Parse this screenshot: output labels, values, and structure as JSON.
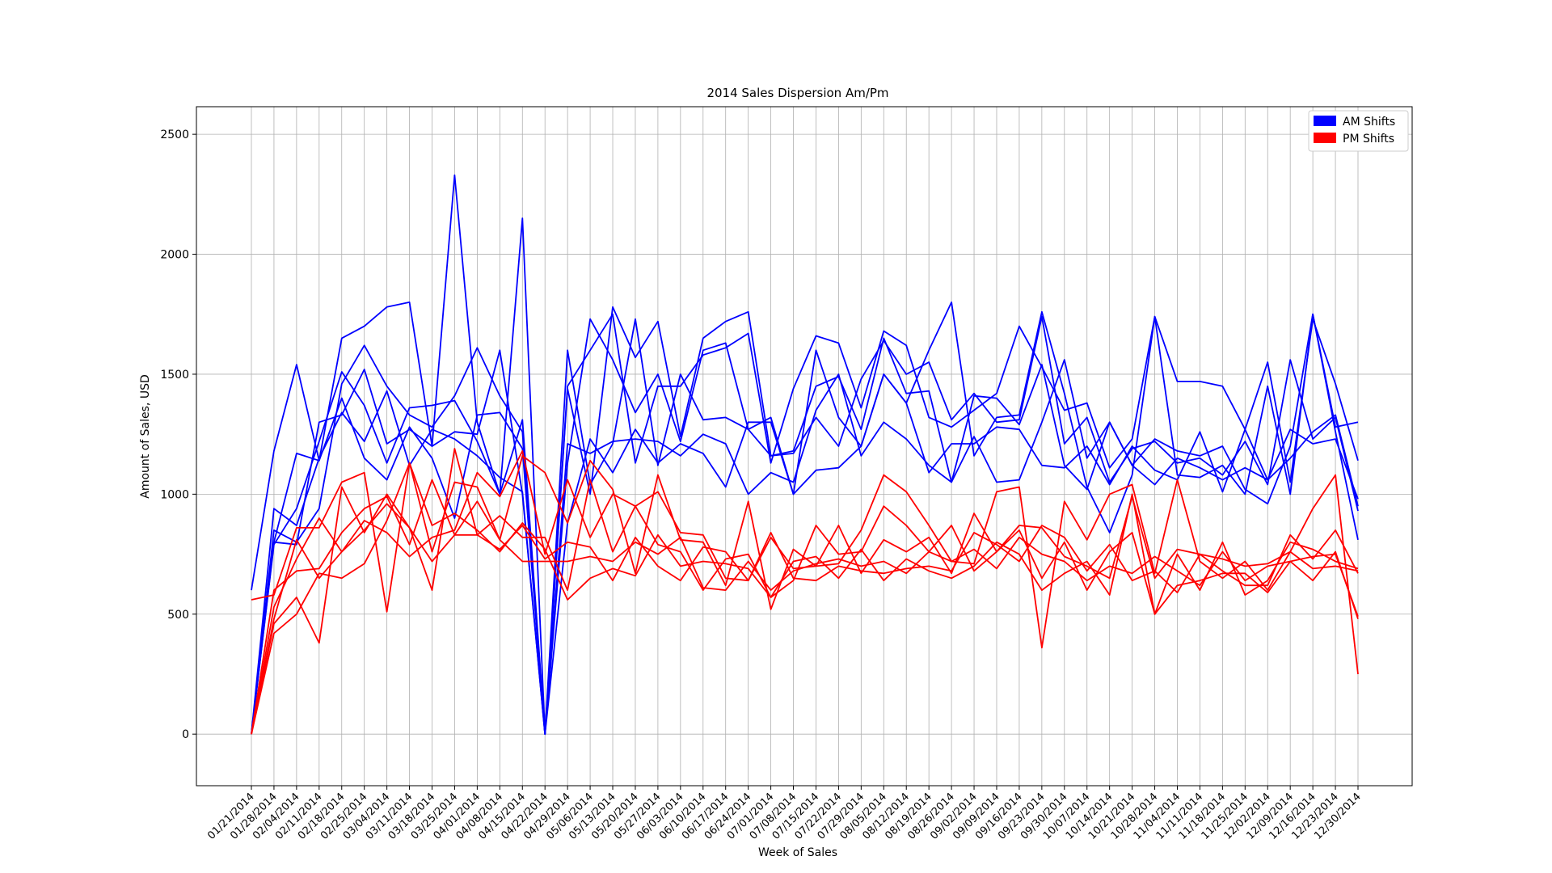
{
  "chart_data": {
    "type": "line",
    "title": "2014 Sales Dispersion Am/Pm",
    "xlabel": "Week of Sales",
    "ylabel": "Amount of Sales, USD",
    "ylim": [
      -215,
      2615
    ],
    "yticks": [
      0,
      500,
      1000,
      1500,
      2000,
      2500
    ],
    "grid": true,
    "legend_position": "top-right",
    "legend": [
      {
        "label": "AM Shifts",
        "color": "#0000ff"
      },
      {
        "label": "PM Shifts",
        "color": "#ff0000"
      }
    ],
    "categories": [
      "01/21/2014",
      "01/28/2014",
      "02/04/2014",
      "02/11/2014",
      "02/18/2014",
      "02/25/2014",
      "03/04/2014",
      "03/11/2014",
      "03/18/2014",
      "03/25/2014",
      "04/01/2014",
      "04/08/2014",
      "04/15/2014",
      "04/22/2014",
      "04/29/2014",
      "05/06/2014",
      "05/13/2014",
      "05/20/2014",
      "05/27/2014",
      "06/03/2014",
      "06/10/2014",
      "06/17/2014",
      "06/24/2014",
      "07/01/2014",
      "07/08/2014",
      "07/15/2014",
      "07/22/2014",
      "07/29/2014",
      "08/05/2014",
      "08/12/2014",
      "08/19/2014",
      "08/26/2014",
      "09/02/2014",
      "09/09/2014",
      "09/16/2014",
      "09/23/2014",
      "09/30/2014",
      "10/07/2014",
      "10/14/2014",
      "10/21/2014",
      "10/28/2014",
      "11/04/2014",
      "11/11/2014",
      "11/18/2014",
      "11/25/2014",
      "12/02/2014",
      "12/09/2014",
      "12/16/2014",
      "12/23/2014",
      "12/30/2014"
    ],
    "series": [
      {
        "group": "AM",
        "color": "#0000ff",
        "values": [
          600,
          1180,
          1540,
          1140,
          1650,
          1700,
          1780,
          1800,
          1200,
          2330,
          1300,
          1000,
          2150,
          0,
          1440,
          1000,
          1780,
          1570,
          1720,
          1240,
          1650,
          1720,
          1760,
          1160,
          1180,
          1450,
          1490,
          1270,
          1650,
          1420,
          1430,
          1050,
          1240,
          1050,
          1060,
          1300,
          1560,
          1150,
          1300,
          1120,
          1230,
          1180,
          1160,
          1200,
          1020,
          960,
          1200,
          1750,
          1260,
          810
        ]
      },
      {
        "group": "AM",
        "color": "#0000ff",
        "values": [
          0,
          850,
          800,
          940,
          1460,
          1620,
          1450,
          1330,
          1280,
          1410,
          1610,
          1410,
          1260,
          0,
          1130,
          1730,
          1560,
          1340,
          1500,
          1220,
          1600,
          1630,
          1270,
          1320,
          1000,
          1600,
          1320,
          1200,
          1500,
          1380,
          1600,
          1800,
          1160,
          1320,
          1330,
          1760,
          1420,
          1030,
          840,
          1080,
          1740,
          1080,
          1070,
          1120,
          1000,
          1450,
          1000,
          1750,
          1280,
          1300
        ]
      },
      {
        "group": "AM",
        "color": "#0000ff",
        "values": [
          0,
          800,
          790,
          1300,
          1330,
          1520,
          1210,
          1270,
          1200,
          1260,
          1250,
          1600,
          1000,
          0,
          1600,
          1040,
          1210,
          1730,
          1120,
          1500,
          1310,
          1320,
          1270,
          1160,
          1170,
          1320,
          1200,
          1480,
          1640,
          1500,
          1550,
          1310,
          1420,
          1300,
          1310,
          1740,
          1210,
          1320,
          1050,
          1190,
          1220,
          1130,
          1150,
          1080,
          1220,
          1040,
          1560,
          1230,
          1320,
          930
        ]
      },
      {
        "group": "AM",
        "color": "#0000ff",
        "values": [
          0,
          940,
          870,
          1150,
          1340,
          1220,
          1430,
          1120,
          1270,
          1230,
          1160,
          1070,
          1010,
          0,
          1210,
          1170,
          1220,
          1230,
          1220,
          1160,
          1250,
          1210,
          1000,
          1090,
          1050,
          1350,
          1500,
          1160,
          1300,
          1230,
          1120,
          1050,
          1410,
          1400,
          1290,
          1540,
          1120,
          1020,
          1300,
          1120,
          1040,
          1150,
          1110,
          1060,
          1110,
          1060,
          1150,
          1260,
          1330,
          950
        ]
      },
      {
        "group": "AM",
        "color": "#0000ff",
        "values": [
          0,
          790,
          940,
          1220,
          1510,
          1370,
          1130,
          1360,
          1370,
          1390,
          1220,
          1000,
          1310,
          0,
          1450,
          1600,
          1750,
          1130,
          1450,
          1450,
          1580,
          1610,
          1670,
          1130,
          1440,
          1660,
          1630,
          1360,
          1680,
          1620,
          1320,
          1280,
          1350,
          1420,
          1700,
          1530,
          1350,
          1380,
          1110,
          1230,
          1740,
          1470,
          1470,
          1450,
          1270,
          1550,
          1050,
          1730,
          1460,
          1140
        ]
      },
      {
        "group": "AM",
        "color": "#0000ff",
        "values": [
          0,
          800,
          1170,
          1140,
          1400,
          1150,
          1060,
          1280,
          1150,
          900,
          1330,
          1340,
          1190,
          0,
          880,
          1230,
          1090,
          1270,
          1130,
          1210,
          1170,
          1030,
          1300,
          1300,
          1000,
          1100,
          1110,
          1200,
          1500,
          1380,
          1090,
          1210,
          1210,
          1280,
          1270,
          1120,
          1110,
          1200,
          1040,
          1200,
          1100,
          1060,
          1260,
          1010,
          1270,
          1060,
          1270,
          1210,
          1230,
          980
        ]
      },
      {
        "group": "PM",
        "color": "#ff0000",
        "values": [
          560,
          580,
          860,
          860,
          1050,
          1090,
          510,
          1130,
          760,
          1050,
          1030,
          810,
          1160,
          1090,
          880,
          1140,
          1020,
          670,
          1080,
          810,
          800,
          620,
          970,
          520,
          770,
          700,
          710,
          850,
          1080,
          1010,
          870,
          720,
          710,
          1010,
          1030,
          360,
          970,
          810,
          1000,
          1040,
          670,
          1060,
          720,
          650,
          720,
          600,
          760,
          940,
          1080,
          250
        ]
      },
      {
        "group": "PM",
        "color": "#ff0000",
        "values": [
          0,
          530,
          730,
          900,
          760,
          890,
          840,
          740,
          820,
          850,
          1090,
          990,
          1180,
          750,
          1060,
          820,
          1000,
          950,
          1010,
          840,
          830,
          650,
          640,
          820,
          690,
          700,
          870,
          670,
          810,
          760,
          820,
          670,
          920,
          760,
          870,
          860,
          740,
          700,
          650,
          990,
          650,
          770,
          750,
          680,
          620,
          620,
          830,
          730,
          850,
          670
        ]
      },
      {
        "group": "PM",
        "color": "#ff0000",
        "values": [
          0,
          460,
          570,
          380,
          1030,
          840,
          1000,
          860,
          600,
          1190,
          830,
          910,
          820,
          820,
          600,
          1060,
          760,
          950,
          790,
          760,
          600,
          730,
          750,
          570,
          640,
          870,
          750,
          760,
          950,
          870,
          760,
          870,
          680,
          760,
          850,
          650,
          800,
          600,
          760,
          840,
          500,
          750,
          600,
          800,
          580,
          640,
          800,
          770,
          720,
          690
        ]
      },
      {
        "group": "PM",
        "color": "#ff0000",
        "values": [
          0,
          600,
          680,
          690,
          840,
          940,
          990,
          790,
          1060,
          830,
          970,
          810,
          720,
          720,
          720,
          740,
          720,
          800,
          750,
          820,
          610,
          600,
          720,
          600,
          680,
          710,
          730,
          700,
          720,
          670,
          760,
          720,
          770,
          690,
          820,
          750,
          720,
          640,
          700,
          670,
          740,
          680,
          620,
          760,
          640,
          700,
          720,
          740,
          750,
          490
        ]
      },
      {
        "group": "PM",
        "color": "#ff0000",
        "values": [
          0,
          480,
          810,
          650,
          760,
          850,
          960,
          860,
          720,
          830,
          830,
          770,
          870,
          730,
          800,
          780,
          640,
          820,
          700,
          640,
          780,
          760,
          640,
          840,
          650,
          640,
          700,
          680,
          670,
          690,
          700,
          680,
          840,
          790,
          720,
          870,
          820,
          680,
          790,
          640,
          680,
          590,
          750,
          730,
          700,
          710,
          760,
          690,
          700,
          680
        ]
      },
      {
        "group": "PM",
        "color": "#ff0000",
        "values": [
          0,
          420,
          500,
          670,
          650,
          710,
          890,
          1130,
          870,
          920,
          850,
          760,
          880,
          770,
          560,
          650,
          690,
          660,
          830,
          700,
          720,
          710,
          690,
          570,
          720,
          740,
          650,
          770,
          640,
          730,
          680,
          650,
          700,
          800,
          750,
          600,
          670,
          720,
          580,
          1000,
          500,
          620,
          640,
          670,
          670,
          590,
          720,
          640,
          760,
          480
        ]
      }
    ]
  }
}
